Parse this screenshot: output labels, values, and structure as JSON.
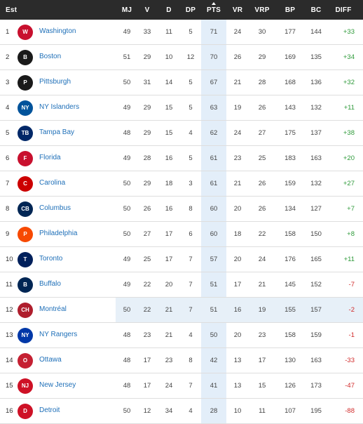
{
  "header": {
    "rank": "Est",
    "mj": "MJ",
    "v": "V",
    "d": "D",
    "dp": "DP",
    "pts": "PTS",
    "vr": "VR",
    "vrp": "VRP",
    "bp": "BP",
    "bc": "BC",
    "diff": "DIFF"
  },
  "rows": [
    {
      "rank": "1",
      "team": "Washington",
      "mj": "49",
      "v": "33",
      "d": "11",
      "dp": "5",
      "pts": "71",
      "vr": "24",
      "vrp": "30",
      "bp": "177",
      "bc": "144",
      "diff": "+33",
      "logo": "capitals-logo",
      "color": "#c8102e",
      "abbr": "W"
    },
    {
      "rank": "2",
      "team": "Boston",
      "mj": "51",
      "v": "29",
      "d": "10",
      "dp": "12",
      "pts": "70",
      "vr": "26",
      "vrp": "29",
      "bp": "169",
      "bc": "135",
      "diff": "+34",
      "logo": "bruins-logo",
      "color": "#1a1a1a",
      "abbr": "B"
    },
    {
      "rank": "3",
      "team": "Pittsburgh",
      "mj": "50",
      "v": "31",
      "d": "14",
      "dp": "5",
      "pts": "67",
      "vr": "21",
      "vrp": "28",
      "bp": "168",
      "bc": "136",
      "diff": "+32",
      "logo": "penguins-logo",
      "color": "#1a1a1a",
      "abbr": "P"
    },
    {
      "rank": "4",
      "team": "NY Islanders",
      "mj": "49",
      "v": "29",
      "d": "15",
      "dp": "5",
      "pts": "63",
      "vr": "19",
      "vrp": "26",
      "bp": "143",
      "bc": "132",
      "diff": "+11",
      "logo": "islanders-logo",
      "color": "#00539b",
      "abbr": "NY"
    },
    {
      "rank": "5",
      "team": "Tampa Bay",
      "mj": "48",
      "v": "29",
      "d": "15",
      "dp": "4",
      "pts": "62",
      "vr": "24",
      "vrp": "27",
      "bp": "175",
      "bc": "137",
      "diff": "+38",
      "logo": "lightning-logo",
      "color": "#002868",
      "abbr": "TB"
    },
    {
      "rank": "6",
      "team": "Florida",
      "mj": "49",
      "v": "28",
      "d": "16",
      "dp": "5",
      "pts": "61",
      "vr": "23",
      "vrp": "25",
      "bp": "183",
      "bc": "163",
      "diff": "+20",
      "logo": "panthers-logo",
      "color": "#c8102e",
      "abbr": "F"
    },
    {
      "rank": "7",
      "team": "Carolina",
      "mj": "50",
      "v": "29",
      "d": "18",
      "dp": "3",
      "pts": "61",
      "vr": "21",
      "vrp": "26",
      "bp": "159",
      "bc": "132",
      "diff": "+27",
      "logo": "hurricanes-logo",
      "color": "#cc0000",
      "abbr": "C"
    },
    {
      "rank": "8",
      "team": "Columbus",
      "mj": "50",
      "v": "26",
      "d": "16",
      "dp": "8",
      "pts": "60",
      "vr": "20",
      "vrp": "26",
      "bp": "134",
      "bc": "127",
      "diff": "+7",
      "logo": "blue-jackets-logo",
      "color": "#002654",
      "abbr": "CB"
    },
    {
      "rank": "9",
      "team": "Philadelphia",
      "mj": "50",
      "v": "27",
      "d": "17",
      "dp": "6",
      "pts": "60",
      "vr": "18",
      "vrp": "22",
      "bp": "158",
      "bc": "150",
      "diff": "+8",
      "logo": "flyers-logo",
      "color": "#f74902",
      "abbr": "P"
    },
    {
      "rank": "10",
      "team": "Toronto",
      "mj": "49",
      "v": "25",
      "d": "17",
      "dp": "7",
      "pts": "57",
      "vr": "20",
      "vrp": "24",
      "bp": "176",
      "bc": "165",
      "diff": "+11",
      "logo": "maple-leafs-logo",
      "color": "#00205b",
      "abbr": "T"
    },
    {
      "rank": "11",
      "team": "Buffalo",
      "mj": "49",
      "v": "22",
      "d": "20",
      "dp": "7",
      "pts": "51",
      "vr": "17",
      "vrp": "21",
      "bp": "145",
      "bc": "152",
      "diff": "-7",
      "logo": "sabres-logo",
      "color": "#002654",
      "abbr": "B"
    },
    {
      "rank": "12",
      "team": "Montréal",
      "mj": "50",
      "v": "22",
      "d": "21",
      "dp": "7",
      "pts": "51",
      "vr": "16",
      "vrp": "19",
      "bp": "155",
      "bc": "157",
      "diff": "-2",
      "logo": "canadiens-logo",
      "color": "#af1e2d",
      "abbr": "CH",
      "highlight": true
    },
    {
      "rank": "13",
      "team": "NY Rangers",
      "mj": "48",
      "v": "23",
      "d": "21",
      "dp": "4",
      "pts": "50",
      "vr": "20",
      "vrp": "23",
      "bp": "158",
      "bc": "159",
      "diff": "-1",
      "logo": "rangers-logo",
      "color": "#0038a8",
      "abbr": "NY"
    },
    {
      "rank": "14",
      "team": "Ottawa",
      "mj": "48",
      "v": "17",
      "d": "23",
      "dp": "8",
      "pts": "42",
      "vr": "13",
      "vrp": "17",
      "bp": "130",
      "bc": "163",
      "diff": "-33",
      "logo": "senators-logo",
      "color": "#c52032",
      "abbr": "O"
    },
    {
      "rank": "15",
      "team": "New Jersey",
      "mj": "48",
      "v": "17",
      "d": "24",
      "dp": "7",
      "pts": "41",
      "vr": "13",
      "vrp": "15",
      "bp": "126",
      "bc": "173",
      "diff": "-47",
      "logo": "devils-logo",
      "color": "#ce1126",
      "abbr": "NJ"
    },
    {
      "rank": "16",
      "team": "Detroit",
      "mj": "50",
      "v": "12",
      "d": "34",
      "dp": "4",
      "pts": "28",
      "vr": "10",
      "vrp": "11",
      "bp": "107",
      "bc": "195",
      "diff": "-88",
      "logo": "red-wings-logo",
      "color": "#ce1126",
      "abbr": "D"
    }
  ]
}
